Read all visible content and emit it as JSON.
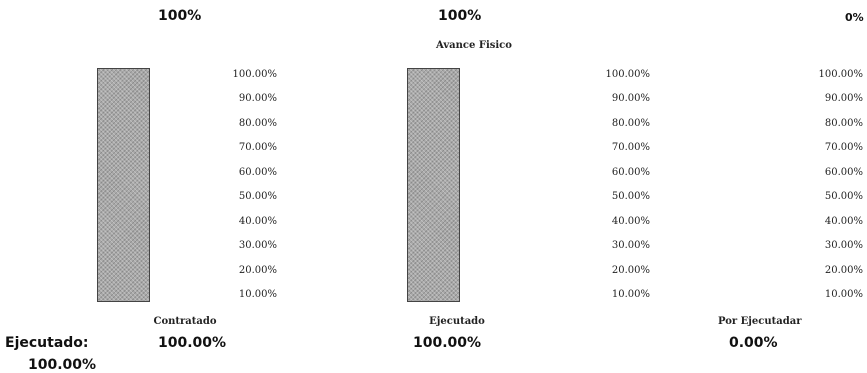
{
  "header": {
    "values": [
      "100%",
      "100%",
      "0%"
    ]
  },
  "chart_data": {
    "type": "bar",
    "title": "Avance Fisico",
    "categories": [
      "Contratado",
      "Ejecutado",
      "Por Ejecutadar"
    ],
    "values": [
      100,
      100,
      0
    ],
    "value_labels": [
      "100.00%",
      "100.00%",
      "0.00%"
    ],
    "ylim": [
      0,
      100
    ],
    "yticks": [
      "100.00%",
      "90.00%",
      "80.00%",
      "70.00%",
      "60.00%",
      "50.00%",
      "40.00%",
      "30.00%",
      "20.00%",
      "10.00%"
    ],
    "grid": false,
    "legend": "none",
    "colors": {
      "bar": "#a9a9a9",
      "bar_border": "#444444"
    }
  },
  "summary": {
    "label": "Ejecutado:",
    "value": "100.00%"
  }
}
